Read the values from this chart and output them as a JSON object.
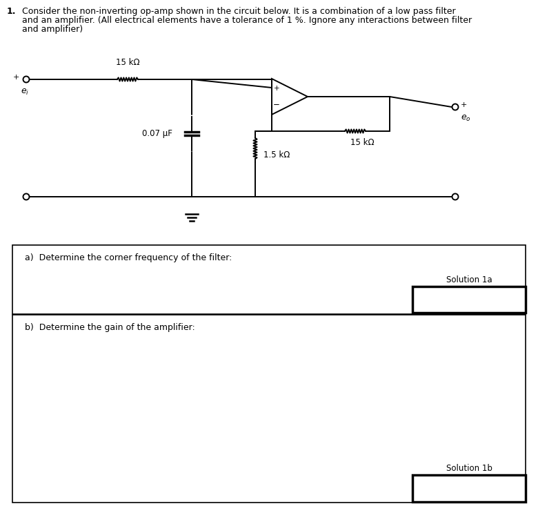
{
  "title_number": "1.",
  "title_line1": "Consider the non-inverting op-amp shown in the circuit below. It is a combination of a low pass filter",
  "title_line2": "and an amplifier. (All electrical elements have a tolerance of 1 %. Ignore any interactions between filter",
  "title_line3": "and amplifier)",
  "resistor_top_label": "15 kΩ",
  "capacitor_label": "0.07 μF",
  "resistor_bottom_label": "1.5 kΩ",
  "resistor_feedback_label": "15 kΩ",
  "input_label_italic": "e",
  "input_subscript": "i",
  "output_label_italic": "e",
  "output_subscript": "o",
  "part_a_text": "a)  Determine the corner frequency of the filter:",
  "part_b_text": "b)  Determine the gain of the amplifier:",
  "solution_1a_label": "Solution 1a",
  "solution_1b_label": "Solution 1b",
  "bg_color": "#ffffff",
  "line_color": "#000000",
  "font_size_title": 9.0,
  "font_size_labels": 9.0,
  "font_size_circuit": 8.5,
  "font_size_solution": 8.5
}
